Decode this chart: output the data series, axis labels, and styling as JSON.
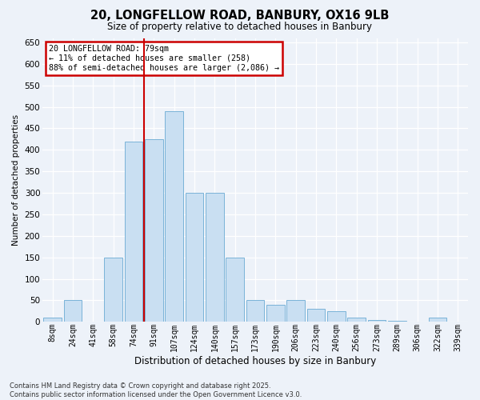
{
  "title": "20, LONGFELLOW ROAD, BANBURY, OX16 9LB",
  "subtitle": "Size of property relative to detached houses in Banbury",
  "xlabel": "Distribution of detached houses by size in Banbury",
  "ylabel": "Number of detached properties",
  "categories": [
    "8sqm",
    "24sqm",
    "41sqm",
    "58sqm",
    "74sqm",
    "91sqm",
    "107sqm",
    "124sqm",
    "140sqm",
    "157sqm",
    "173sqm",
    "190sqm",
    "206sqm",
    "223sqm",
    "240sqm",
    "256sqm",
    "273sqm",
    "289sqm",
    "306sqm",
    "322sqm",
    "339sqm"
  ],
  "values": [
    10,
    50,
    0,
    150,
    420,
    425,
    490,
    300,
    300,
    150,
    50,
    40,
    50,
    30,
    25,
    10,
    5,
    2,
    1,
    10,
    1
  ],
  "bar_color": "#c9dff2",
  "bar_edge_color": "#7ab3d8",
  "vline_color": "#cc0000",
  "vline_index": 4.5,
  "annotation_text": "20 LONGFELLOW ROAD: 79sqm\n← 11% of detached houses are smaller (258)\n88% of semi-detached houses are larger (2,086) →",
  "annotation_box_facecolor": "#ffffff",
  "annotation_box_edgecolor": "#cc0000",
  "ylim_max": 660,
  "ytick_step": 50,
  "bg_color": "#edf2f9",
  "grid_color": "#ffffff",
  "footer": "Contains HM Land Registry data © Crown copyright and database right 2025.\nContains public sector information licensed under the Open Government Licence v3.0."
}
